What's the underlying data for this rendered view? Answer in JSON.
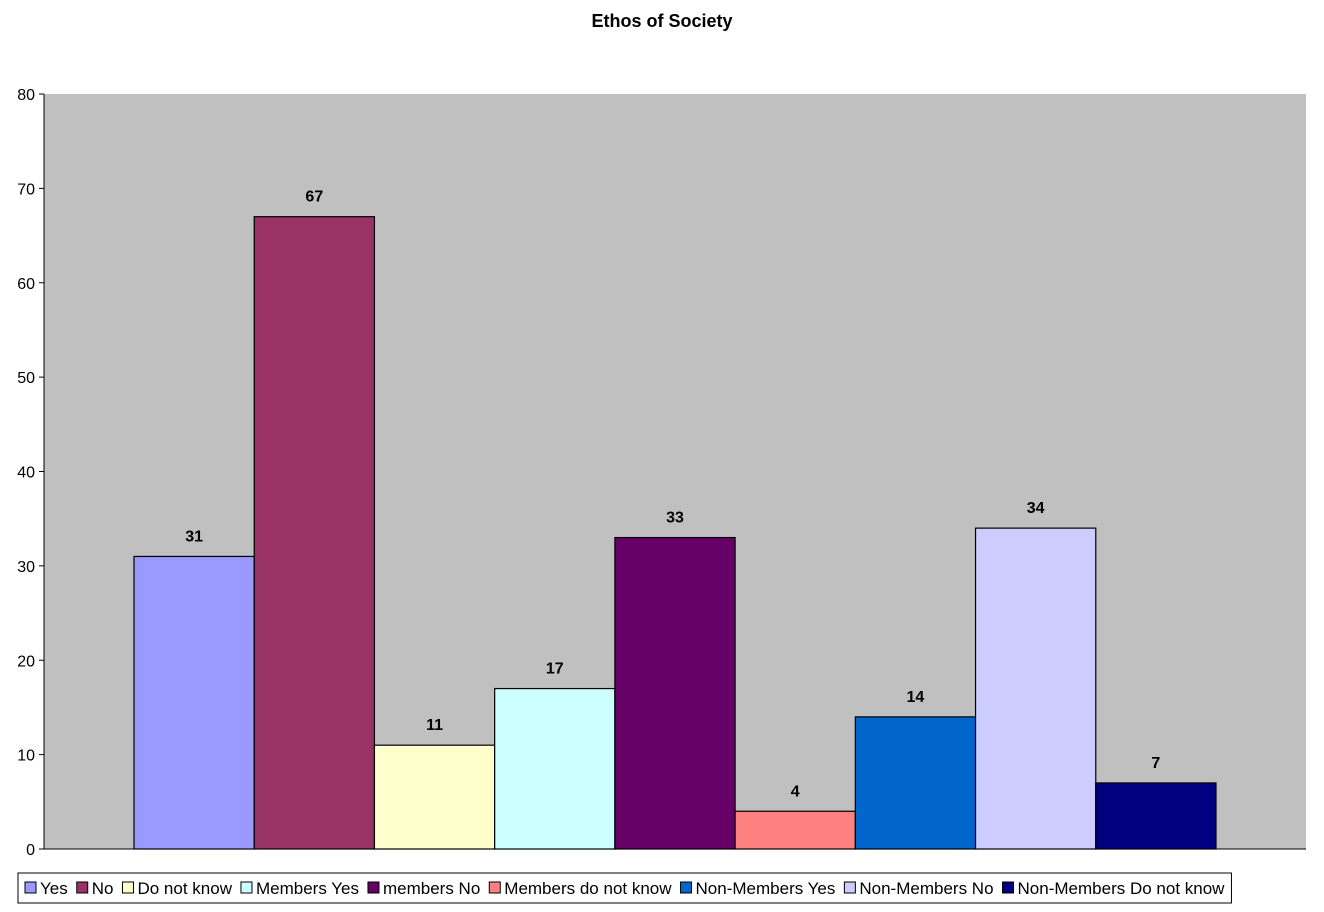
{
  "chart_data": {
    "type": "bar",
    "title": "Ethos of Society",
    "xlabel": "",
    "ylabel": "",
    "ylim": [
      0,
      80
    ],
    "yticks": [
      0,
      10,
      20,
      30,
      40,
      50,
      60,
      70,
      80
    ],
    "grid": false,
    "plot_background": "#c0c0c0",
    "legend_position": "bottom",
    "series": [
      {
        "name": "Yes",
        "value": 31,
        "color": "#9999ff"
      },
      {
        "name": "No",
        "value": 67,
        "color": "#993366"
      },
      {
        "name": "Do not know",
        "value": 11,
        "color": "#ffffcc"
      },
      {
        "name": "Members Yes",
        "value": 17,
        "color": "#ccffff"
      },
      {
        "name": "members No",
        "value": 33,
        "color": "#660066"
      },
      {
        "name": "Members do not know",
        "value": 4,
        "color": "#ff8080"
      },
      {
        "name": "Non-Members Yes",
        "value": 14,
        "color": "#0066cc"
      },
      {
        "name": "Non-Members No",
        "value": 34,
        "color": "#ccccff"
      },
      {
        "name": "Non-Members Do not know",
        "value": 7,
        "color": "#000080"
      }
    ]
  }
}
